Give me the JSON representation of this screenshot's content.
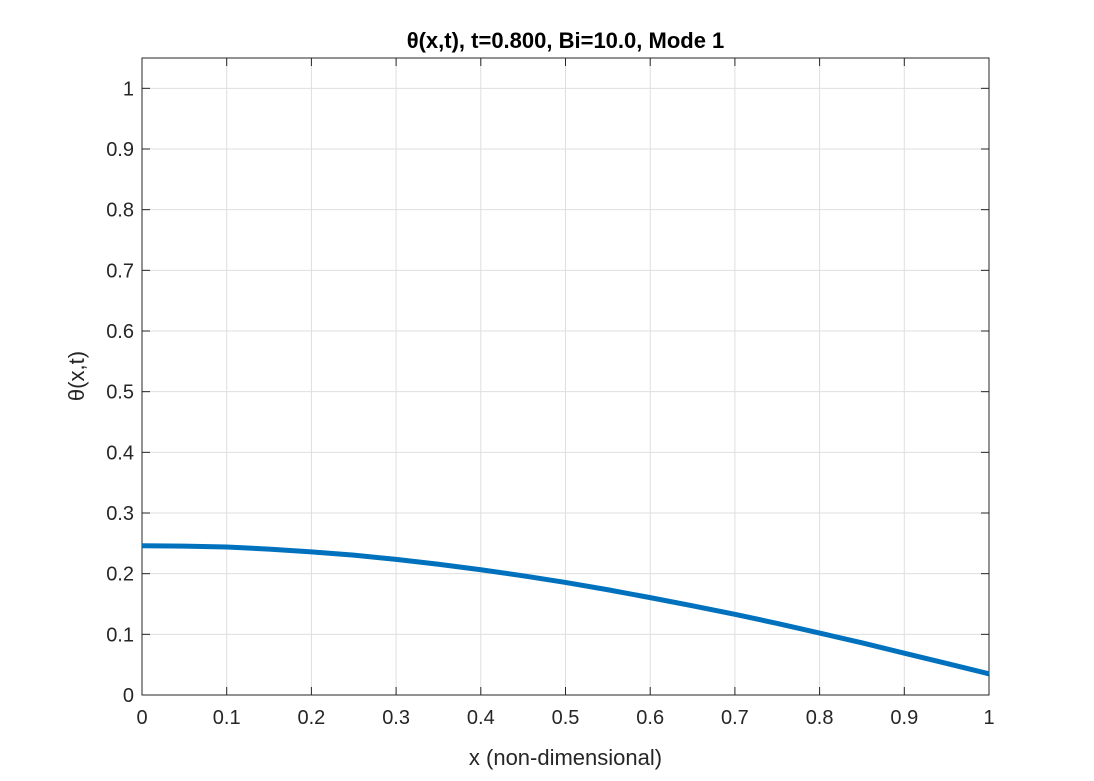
{
  "chart_data": {
    "type": "line",
    "title": "θ(x,t), t=0.800, Bi=10.0, Mode 1",
    "xlabel": "x (non-dimensional)",
    "ylabel": "θ(x,t)",
    "xlim": [
      0,
      1
    ],
    "ylim": [
      0,
      1.05
    ],
    "xticks": [
      0,
      0.1,
      0.2,
      0.3,
      0.4,
      0.5,
      0.6,
      0.7,
      0.8,
      0.9,
      1
    ],
    "xtick_labels": [
      "0",
      "0.1",
      "0.2",
      "0.3",
      "0.4",
      "0.5",
      "0.6",
      "0.7",
      "0.8",
      "0.9",
      "1"
    ],
    "yticks": [
      0,
      0.1,
      0.2,
      0.3,
      0.4,
      0.5,
      0.6,
      0.7,
      0.8,
      0.9,
      1
    ],
    "ytick_labels": [
      "0",
      "0.1",
      "0.2",
      "0.3",
      "0.4",
      "0.5",
      "0.6",
      "0.7",
      "0.8",
      "0.9",
      "1"
    ],
    "grid": true,
    "series": [
      {
        "color": "#0072BD",
        "x": [
          0,
          0.05,
          0.1,
          0.15,
          0.2,
          0.25,
          0.3,
          0.35,
          0.4,
          0.45,
          0.5,
          0.55,
          0.6,
          0.65,
          0.7,
          0.75,
          0.8,
          0.85,
          0.9,
          0.95,
          1
        ],
        "y": [
          0.246,
          0.2455,
          0.244,
          0.2405,
          0.236,
          0.2305,
          0.2235,
          0.2155,
          0.2065,
          0.1965,
          0.1855,
          0.1735,
          0.1605,
          0.147,
          0.133,
          0.118,
          0.102,
          0.086,
          0.069,
          0.052,
          0.035
        ]
      }
    ]
  }
}
